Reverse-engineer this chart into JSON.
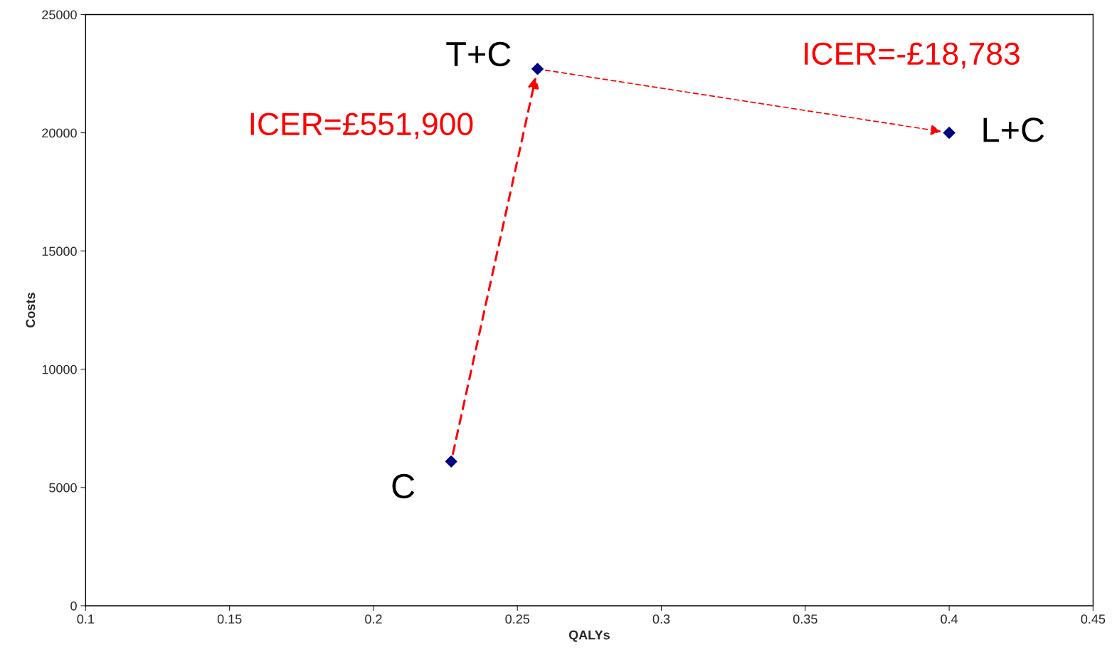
{
  "chart_data": {
    "type": "scatter",
    "xlabel": "QALYs",
    "ylabel": "Costs",
    "x": [
      0.227,
      0.257,
      0.4
    ],
    "series": [
      {
        "color": "#000080",
        "values": [
          6100,
          22700,
          20000
        ]
      }
    ],
    "marker": "diamond",
    "grid": false,
    "legend": false,
    "xlim": [
      0.1,
      0.45
    ],
    "xticks": [
      0.1,
      0.15,
      0.2,
      0.25,
      0.3,
      0.35,
      0.4,
      0.45
    ],
    "ylim": [
      0,
      25000
    ],
    "yticks": [
      0,
      5000,
      10000,
      15000,
      20000,
      25000
    ],
    "annotations": [
      {
        "text": "C",
        "x": 0.227,
        "y": 6100
      },
      {
        "text": "T+C",
        "x": 0.257,
        "y": 22700
      },
      {
        "text": "L+C",
        "x": 0.4,
        "y": 20000
      },
      "ICER=£551,900",
      "ICER=-£18,783"
    ]
  }
}
